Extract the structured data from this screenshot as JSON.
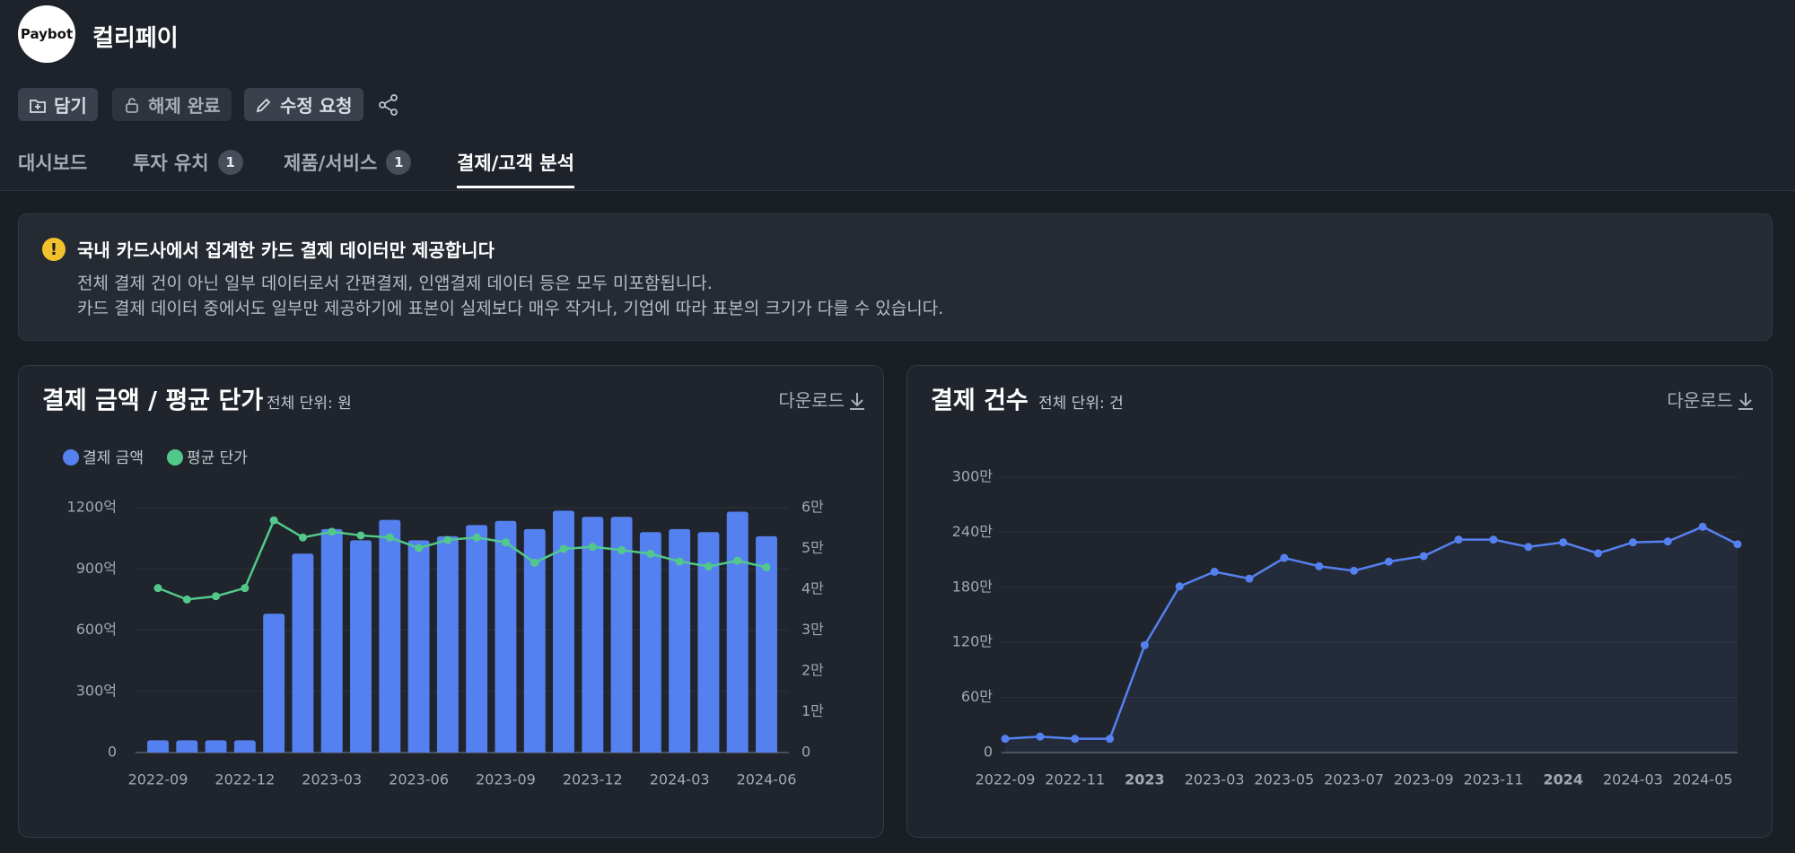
{
  "header": {
    "logo_text": "Paybot",
    "title": "컬리페이"
  },
  "actions": [
    "담기",
    "해제 완료",
    "수정 요청"
  ],
  "tabs": [
    {
      "label": "대시보드"
    },
    {
      "label": "투자 유치",
      "badge": 1
    },
    {
      "label": "제품/서비스",
      "badge": 1
    },
    {
      "label": "결제/고객 분석",
      "active": true
    }
  ],
  "notice": {
    "title": "국내 카드사에서 집계한 카드 결제 데이터만 제공합니다",
    "lines": [
      "전체 결제 건이 아닌 일부 데이터로서 간편결제, 인앱결제 데이터 등은 모두 미포함됩니다.",
      "카드 결제 데이터 중에서도 일부만 제공하기에 표본이 실제보다 매우 작거나, 기업에 따라 표본의 크기가 다를 수 있습니다."
    ]
  },
  "chart_data": [
    {
      "type": "bar",
      "title": "결제 금액 / 평균 단가",
      "subtitle": "전체 단위: 원",
      "download": "다운로드",
      "legend": "top-left",
      "grid": true,
      "categories": [
        "2022-09",
        null,
        null,
        "2022-12",
        null,
        null,
        "2023-03",
        null,
        null,
        "2023-06",
        null,
        null,
        "2023-09",
        null,
        null,
        "2023-12",
        null,
        null,
        "2024-03",
        null,
        null,
        "2024-06"
      ],
      "series": [
        {
          "name": "결제 금액",
          "color": "#5581f0",
          "type": "bar",
          "values": [
            60,
            60,
            60,
            60,
            680,
            975,
            1095,
            1040,
            1140,
            1040,
            1060,
            1115,
            1135,
            1095,
            1185,
            1155,
            1155,
            1080,
            1095,
            1080,
            1180,
            1060
          ]
        },
        {
          "name": "평균 단가",
          "color": "#52c98b",
          "type": "line",
          "axis": "y2",
          "values": [
            40300,
            37500,
            38300,
            40300,
            56900,
            52700,
            54100,
            53200,
            52700,
            50100,
            52100,
            52700,
            51500,
            46500,
            49900,
            50400,
            49600,
            48700,
            46800,
            45600,
            47000,
            45400
          ]
        }
      ],
      "ylim": [
        0,
        1200
      ],
      "yticks": [
        0,
        {
          "value": 300,
          "label": "300억"
        },
        {
          "value": 600,
          "label": "600억"
        },
        {
          "value": 900,
          "label": "900억"
        },
        {
          "value": 1200,
          "label": "1200억"
        }
      ],
      "y2lim": [
        0,
        60000
      ],
      "y2ticks": [
        0,
        {
          "value": 10000,
          "label": "1만"
        },
        {
          "value": 20000,
          "label": "2만"
        },
        {
          "value": 30000,
          "label": "3만"
        },
        {
          "value": 40000,
          "label": "4만"
        },
        {
          "value": 50000,
          "label": "5만"
        },
        {
          "value": 60000,
          "label": "6만"
        }
      ]
    },
    {
      "type": "line",
      "title": "결제 건수",
      "subtitle": "전체 단위: 건",
      "download": "다운로드",
      "grid": true,
      "categories": [
        "2022-09",
        null,
        "2022-11",
        null,
        "2023",
        null,
        "2023-03",
        null,
        "2023-05",
        null,
        "2023-07",
        null,
        "2023-09",
        null,
        "2023-11",
        null,
        "2024",
        null,
        "2024-03",
        null,
        "2024-05",
        null
      ],
      "series": [
        {
          "name": "결제 건수",
          "color": "#5581f0",
          "values": [
            150000,
            174000,
            150000,
            150000,
            1170000,
            1810000,
            1970000,
            1895000,
            2120000,
            2030000,
            1980000,
            2080000,
            2140000,
            2320000,
            2320000,
            2240000,
            2290000,
            2170000,
            2290000,
            2300000,
            2460000,
            2270000
          ]
        }
      ],
      "ylim": [
        0,
        3000000
      ],
      "yticks": [
        0,
        {
          "value": 600000,
          "label": "60만"
        },
        {
          "value": 1200000,
          "label": "120만"
        },
        {
          "value": 1800000,
          "label": "180만"
        },
        {
          "value": 2400000,
          "label": "240만"
        },
        {
          "value": 3000000,
          "label": "300만"
        }
      ]
    }
  ]
}
